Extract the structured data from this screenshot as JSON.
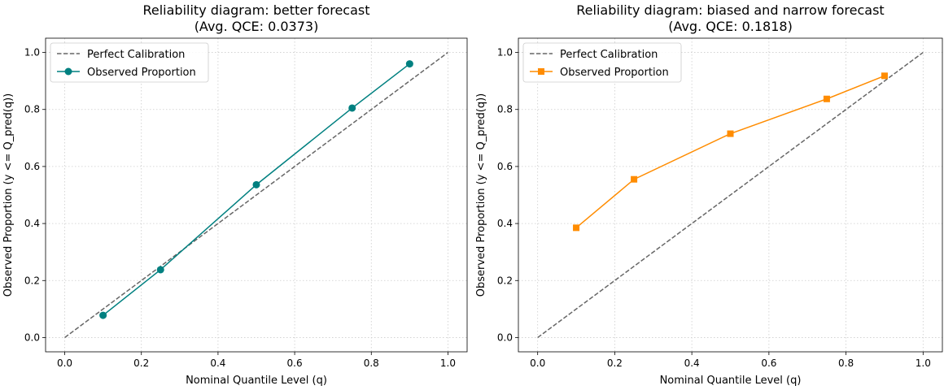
{
  "chart_data": [
    {
      "type": "line",
      "title": "Reliability diagram: better forecast",
      "subtitle": "(Avg. QCE: 0.0373)",
      "xlabel": "Nominal Quantile Level (q)",
      "ylabel": "Observed Proportion (y <= Q_pred(q))",
      "xlim": [
        -0.05,
        1.05
      ],
      "ylim": [
        -0.05,
        1.05
      ],
      "xticks": [
        0.0,
        0.2,
        0.4,
        0.6,
        0.8,
        1.0
      ],
      "yticks": [
        0.0,
        0.2,
        0.4,
        0.6,
        0.8,
        1.0
      ],
      "xtick_labels": [
        "0.0",
        "0.2",
        "0.4",
        "0.6",
        "0.8",
        "1.0"
      ],
      "ytick_labels": [
        "0.0",
        "0.2",
        "0.4",
        "0.6",
        "0.8",
        "1.0"
      ],
      "grid": true,
      "legend": "top-left",
      "series": [
        {
          "name": "Perfect Calibration",
          "style": "dashed",
          "marker": "none",
          "color": "#666666",
          "x": [
            0.0,
            1.0
          ],
          "y": [
            0.0,
            1.0
          ]
        },
        {
          "name": "Observed Proportion",
          "style": "solid",
          "marker": "circle",
          "color": "#008080",
          "x": [
            0.1,
            0.25,
            0.5,
            0.75,
            0.9
          ],
          "y": [
            0.078,
            0.238,
            0.536,
            0.805,
            0.96
          ]
        }
      ]
    },
    {
      "type": "line",
      "title": "Reliability diagram: biased and narrow forecast",
      "subtitle": "(Avg. QCE: 0.1818)",
      "xlabel": "Nominal Quantile Level (q)",
      "ylabel": "Observed Proportion (y <= Q_pred(q))",
      "xlim": [
        -0.05,
        1.05
      ],
      "ylim": [
        -0.05,
        1.05
      ],
      "xticks": [
        0.0,
        0.2,
        0.4,
        0.6,
        0.8,
        1.0
      ],
      "yticks": [
        0.0,
        0.2,
        0.4,
        0.6,
        0.8,
        1.0
      ],
      "xtick_labels": [
        "0.0",
        "0.2",
        "0.4",
        "0.6",
        "0.8",
        "1.0"
      ],
      "ytick_labels": [
        "0.0",
        "0.2",
        "0.4",
        "0.6",
        "0.8",
        "1.0"
      ],
      "grid": true,
      "legend": "top-left",
      "series": [
        {
          "name": "Perfect Calibration",
          "style": "dashed",
          "marker": "none",
          "color": "#666666",
          "x": [
            0.0,
            1.0
          ],
          "y": [
            0.0,
            1.0
          ]
        },
        {
          "name": "Observed Proportion",
          "style": "solid",
          "marker": "square",
          "color": "#ff8c00",
          "x": [
            0.1,
            0.25,
            0.5,
            0.75,
            0.9
          ],
          "y": [
            0.385,
            0.555,
            0.715,
            0.837,
            0.918
          ]
        }
      ]
    }
  ]
}
